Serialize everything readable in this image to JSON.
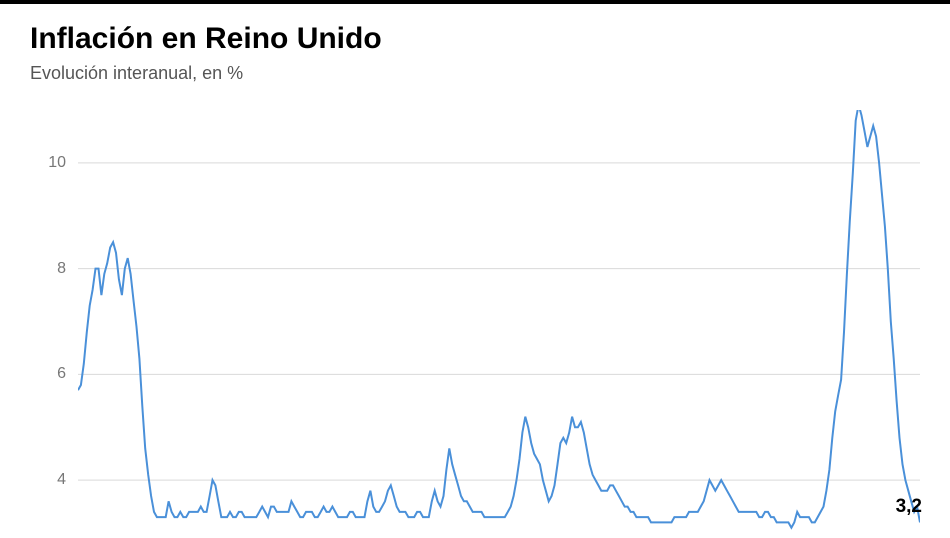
{
  "header": {
    "title": "Inflación en Reino Unido",
    "subtitle": "Evolución interanual, en %"
  },
  "chart": {
    "type": "line",
    "line_color": "#4a90d9",
    "line_width": 2,
    "background_color": "#ffffff",
    "grid_color": "#d9d9d9",
    "y_axis": {
      "min": 3,
      "max": 11,
      "ticks": [
        4,
        6,
        8,
        10
      ],
      "label_color": "#777777",
      "label_fontsize": 16
    },
    "last_value_label": "3,2",
    "series": [
      5.7,
      5.8,
      6.2,
      6.8,
      7.3,
      7.6,
      8.0,
      8.0,
      7.5,
      7.9,
      8.1,
      8.4,
      8.5,
      8.3,
      7.8,
      7.5,
      8.0,
      8.2,
      7.9,
      7.4,
      6.9,
      6.3,
      5.4,
      4.6,
      4.1,
      3.7,
      3.4,
      3.3,
      3.3,
      3.3,
      3.3,
      3.6,
      3.4,
      3.3,
      3.3,
      3.4,
      3.3,
      3.3,
      3.4,
      3.4,
      3.4,
      3.4,
      3.5,
      3.4,
      3.4,
      3.7,
      4.0,
      3.9,
      3.6,
      3.3,
      3.3,
      3.3,
      3.4,
      3.3,
      3.3,
      3.4,
      3.4,
      3.3,
      3.3,
      3.3,
      3.3,
      3.3,
      3.4,
      3.5,
      3.4,
      3.3,
      3.5,
      3.5,
      3.4,
      3.4,
      3.4,
      3.4,
      3.4,
      3.6,
      3.5,
      3.4,
      3.3,
      3.3,
      3.4,
      3.4,
      3.4,
      3.3,
      3.3,
      3.4,
      3.5,
      3.4,
      3.4,
      3.5,
      3.4,
      3.3,
      3.3,
      3.3,
      3.3,
      3.4,
      3.4,
      3.3,
      3.3,
      3.3,
      3.3,
      3.6,
      3.8,
      3.5,
      3.4,
      3.4,
      3.5,
      3.6,
      3.8,
      3.9,
      3.7,
      3.5,
      3.4,
      3.4,
      3.4,
      3.3,
      3.3,
      3.3,
      3.4,
      3.4,
      3.3,
      3.3,
      3.3,
      3.6,
      3.8,
      3.6,
      3.5,
      3.7,
      4.2,
      4.6,
      4.3,
      4.1,
      3.9,
      3.7,
      3.6,
      3.6,
      3.5,
      3.4,
      3.4,
      3.4,
      3.4,
      3.3,
      3.3,
      3.3,
      3.3,
      3.3,
      3.3,
      3.3,
      3.3,
      3.4,
      3.5,
      3.7,
      4.0,
      4.4,
      4.9,
      5.2,
      5.0,
      4.7,
      4.5,
      4.4,
      4.3,
      4.0,
      3.8,
      3.6,
      3.7,
      3.9,
      4.3,
      4.7,
      4.8,
      4.7,
      4.9,
      5.2,
      5.0,
      5.0,
      5.1,
      4.9,
      4.6,
      4.3,
      4.1,
      4.0,
      3.9,
      3.8,
      3.8,
      3.8,
      3.9,
      3.9,
      3.8,
      3.7,
      3.6,
      3.5,
      3.5,
      3.4,
      3.4,
      3.3,
      3.3,
      3.3,
      3.3,
      3.3,
      3.2,
      3.2,
      3.2,
      3.2,
      3.2,
      3.2,
      3.2,
      3.2,
      3.3,
      3.3,
      3.3,
      3.3,
      3.3,
      3.4,
      3.4,
      3.4,
      3.4,
      3.5,
      3.6,
      3.8,
      4.0,
      3.9,
      3.8,
      3.9,
      4.0,
      3.9,
      3.8,
      3.7,
      3.6,
      3.5,
      3.4,
      3.4,
      3.4,
      3.4,
      3.4,
      3.4,
      3.4,
      3.3,
      3.3,
      3.4,
      3.4,
      3.3,
      3.3,
      3.2,
      3.2,
      3.2,
      3.2,
      3.2,
      3.1,
      3.2,
      3.4,
      3.3,
      3.3,
      3.3,
      3.3,
      3.2,
      3.2,
      3.3,
      3.4,
      3.5,
      3.8,
      4.2,
      4.8,
      5.3,
      5.6,
      5.9,
      6.8,
      7.9,
      8.9,
      9.8,
      10.8,
      11.1,
      10.9,
      10.6,
      10.3,
      10.5,
      10.7,
      10.5,
      10.0,
      9.4,
      8.8,
      8.0,
      7.0,
      6.3,
      5.5,
      4.8,
      4.3,
      4.0,
      3.8,
      3.6,
      3.4,
      3.5,
      3.2
    ]
  }
}
